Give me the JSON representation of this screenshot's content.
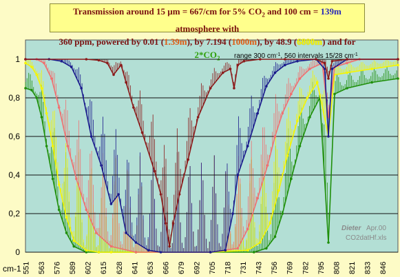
{
  "title": {
    "l1_a": "Transmission around 15 µm = 667/cm for 5% CO",
    "l1_b": " and 100 cm = ",
    "l1_c": "139m",
    "l1_d": " atmosphere with",
    "l2_a": "360 ppm, powered by 0.01 (",
    "l2_b": "1.39m",
    "l2_c": "), by 7.194 (",
    "l2_d": "1000m",
    "l2_e": "), by 48.9 (",
    "l2_f": "6800m",
    "l2_g": ") and for ",
    "l2_h": "2*CO",
    "sub": "2"
  },
  "annotation": {
    "main": "range 300 cm",
    "sup": "-1",
    "rest": ", 560 intervals 15/28 cm",
    "sup2": "-1"
  },
  "watermark": {
    "line1": "Dieter",
    "line1b": "Apr.00",
    "line2": "CO2datHf.xls"
  },
  "colors": {
    "plot_bg": "#b3dfd5",
    "grid": "#111111",
    "series_1_39m": "#8b1a1a",
    "series_139m": "#1a1a8c",
    "series_1000m": "#f07070",
    "series_6800m": "#f5f500",
    "series_2co2": "#1f8f0a"
  },
  "chart_data": {
    "type": "line",
    "x_unit_label": "cm-1",
    "categories": [
      "551",
      "563",
      "576",
      "589",
      "602",
      "615",
      "628",
      "641",
      "653",
      "666",
      "679",
      "692",
      "705",
      "718",
      "731",
      "743",
      "756",
      "769",
      "782",
      "795",
      "808",
      "821",
      "833",
      "846"
    ],
    "xlim": [
      551,
      851
    ],
    "ylim": [
      0,
      1.1
    ],
    "yticks": [
      0,
      0.2,
      0.4,
      0.6,
      0.8,
      1
    ],
    "ytick_labels": [
      "0",
      "0,2",
      "0,4",
      "0,6",
      "0,8",
      "1"
    ],
    "grid": true,
    "series": [
      {
        "key": "s1",
        "x": [
          551,
          600,
          610,
          617,
          622,
          628,
          632,
          638,
          645,
          655,
          660,
          664,
          667,
          670,
          675,
          682,
          690,
          700,
          710,
          716,
          719,
          722,
          727,
          740,
          760,
          785,
          792,
          795,
          798,
          810,
          851
        ],
        "y": [
          1,
          1,
          0.995,
          0.98,
          0.92,
          0.97,
          0.88,
          0.75,
          0.62,
          0.42,
          0.3,
          0.15,
          0.03,
          0.15,
          0.3,
          0.48,
          0.7,
          0.85,
          0.93,
          0.95,
          0.85,
          0.97,
          0.99,
          1,
          1,
          1,
          0.98,
          0.9,
          0.99,
          1,
          1
        ]
      },
      {
        "key": "s2",
        "x": [
          551,
          570,
          580,
          588,
          596,
          604,
          612,
          620,
          626,
          632,
          640,
          650,
          660,
          700,
          712,
          718,
          722,
          730,
          738,
          745,
          752,
          760,
          770,
          785,
          792,
          795,
          798,
          810,
          851
        ],
        "y": [
          1,
          1,
          0.99,
          0.96,
          0.85,
          0.6,
          0.45,
          0.25,
          0.3,
          0.1,
          0.05,
          0.01,
          0,
          0,
          0.01,
          0.2,
          0.4,
          0.55,
          0.72,
          0.86,
          0.93,
          0.97,
          0.99,
          1,
          0.95,
          0.6,
          0.95,
          1,
          1
        ]
      },
      {
        "key": "s3",
        "x": [
          551,
          560,
          566,
          572,
          578,
          585,
          592,
          600,
          608,
          620,
          640,
          700,
          722,
          730,
          738,
          746,
          752,
          758,
          765,
          772,
          780,
          790,
          795,
          800,
          810,
          820,
          851
        ],
        "y": [
          1,
          1,
          0.98,
          0.9,
          0.75,
          0.55,
          0.38,
          0.22,
          0.1,
          0.03,
          0,
          0,
          0.02,
          0.12,
          0.28,
          0.45,
          0.6,
          0.72,
          0.82,
          0.9,
          0.95,
          0.98,
          0.7,
          0.96,
          0.98,
          1,
          1
        ]
      },
      {
        "key": "s4",
        "x": [
          551,
          556,
          560,
          564,
          568,
          573,
          578,
          584,
          590,
          600,
          610,
          620,
          640,
          700,
          730,
          740,
          748,
          755,
          762,
          770,
          778,
          786,
          795,
          800,
          810,
          830,
          851
        ],
        "y": [
          0.98,
          0.96,
          0.92,
          0.85,
          0.72,
          0.55,
          0.35,
          0.18,
          0.06,
          0.01,
          0,
          0,
          0,
          0,
          0.01,
          0.05,
          0.15,
          0.32,
          0.5,
          0.68,
          0.8,
          0.88,
          0.6,
          0.92,
          0.93,
          0.95,
          0.97
        ]
      },
      {
        "key": "s5",
        "x": [
          551,
          556,
          560,
          564,
          568,
          573,
          578,
          584,
          590,
          600,
          610,
          640,
          700,
          735,
          745,
          752,
          758,
          765,
          772,
          780,
          788,
          795,
          800,
          810,
          830,
          851
        ],
        "y": [
          0.85,
          0.84,
          0.8,
          0.7,
          0.55,
          0.38,
          0.22,
          0.1,
          0.03,
          0,
          0,
          0,
          0,
          0,
          0.02,
          0.08,
          0.2,
          0.38,
          0.55,
          0.7,
          0.8,
          0.05,
          0.82,
          0.85,
          0.88,
          0.9
        ]
      }
    ]
  }
}
